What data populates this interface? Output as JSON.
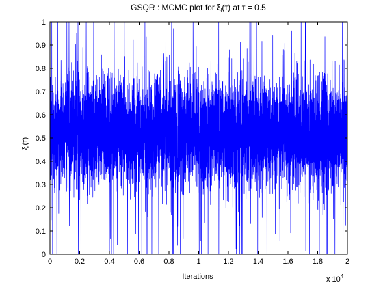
{
  "chart_data": {
    "type": "line",
    "title": "GSQR : MCMC plot for ξ",
    "title_sub": "l",
    "title_tail": "(τ) at τ = 0.5",
    "xlabel": "Iterations",
    "ylabel": "ξ",
    "ylabel_sub": "l",
    "ylabel_tail": "(τ)",
    "x_multiplier_base": "x 10",
    "x_multiplier_exp": "4",
    "xlim": [
      0,
      2
    ],
    "ylim": [
      0,
      1
    ],
    "x_ticks": [
      "0",
      "0.2",
      "0.4",
      "0.6",
      "0.8",
      "1",
      "1.2",
      "1.4",
      "1.6",
      "1.8",
      "2"
    ],
    "y_ticks": [
      "0",
      "0.1",
      "0.2",
      "0.3",
      "0.4",
      "0.5",
      "0.6",
      "0.7",
      "0.8",
      "0.9",
      "1"
    ],
    "series": [
      {
        "color": "#0000ff",
        "trace_summary": {
          "iterations": 20000,
          "center": 0.52,
          "typical_band": [
            0.35,
            0.68
          ],
          "observed_min": 0.0,
          "observed_max": 1.0,
          "final_value": 0.47
        }
      }
    ],
    "grid": false,
    "legend": "none"
  }
}
